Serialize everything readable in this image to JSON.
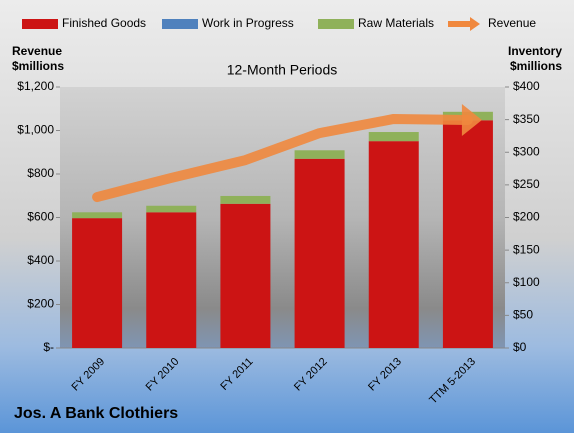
{
  "chart_data": {
    "type": "bar",
    "subtitle": "12-Month Periods",
    "footer": "Jos. A Bank Clothiers",
    "ylabel": [
      "Revenue",
      "$millions"
    ],
    "y2label": [
      "Inventory",
      "$millions"
    ],
    "categories": [
      "FY 2009",
      "FY 2010",
      "FY 2011",
      "FY 2012",
      "FY 2013",
      "TTM 5-2013"
    ],
    "stacked": true,
    "series": [
      {
        "name": "Finished Goods",
        "color": "#cc1414",
        "axis": "y2",
        "type": "bar",
        "values": [
          199,
          208,
          221,
          290,
          317,
          349
        ]
      },
      {
        "name": "Work in Progress",
        "color": "#4f81bd",
        "axis": "y2",
        "type": "bar",
        "values": [
          0,
          0,
          0,
          0,
          0,
          0
        ]
      },
      {
        "name": "Raw Materials",
        "color": "#8fb15a",
        "axis": "y2",
        "type": "bar",
        "values": [
          9,
          10,
          12,
          13,
          14,
          13
        ]
      },
      {
        "name": "Revenue",
        "color": "#f0883e",
        "axis": "y",
        "type": "line",
        "values": [
          694,
          782,
          864,
          988,
          1053,
          1048
        ]
      }
    ],
    "ylim": [
      0,
      1200
    ],
    "yticks": [
      {
        "value": 0,
        "label": "$-"
      },
      {
        "value": 200,
        "label": "$200"
      },
      {
        "value": 400,
        "label": "$400"
      },
      {
        "value": 600,
        "label": "$600"
      },
      {
        "value": 800,
        "label": "$800"
      },
      {
        "value": 1000,
        "label": "$1,000"
      },
      {
        "value": 1200,
        "label": "$1,200"
      }
    ],
    "y2lim": [
      0,
      400
    ],
    "y2ticks": [
      {
        "value": 0,
        "label": "$0"
      },
      {
        "value": 50,
        "label": "$50"
      },
      {
        "value": 100,
        "label": "$100"
      },
      {
        "value": 150,
        "label": "$150"
      },
      {
        "value": 200,
        "label": "$200"
      },
      {
        "value": 250,
        "label": "$250"
      },
      {
        "value": 300,
        "label": "$300"
      },
      {
        "value": 350,
        "label": "$350"
      },
      {
        "value": 400,
        "label": "$400"
      }
    ],
    "grid": false,
    "legend": "top"
  }
}
